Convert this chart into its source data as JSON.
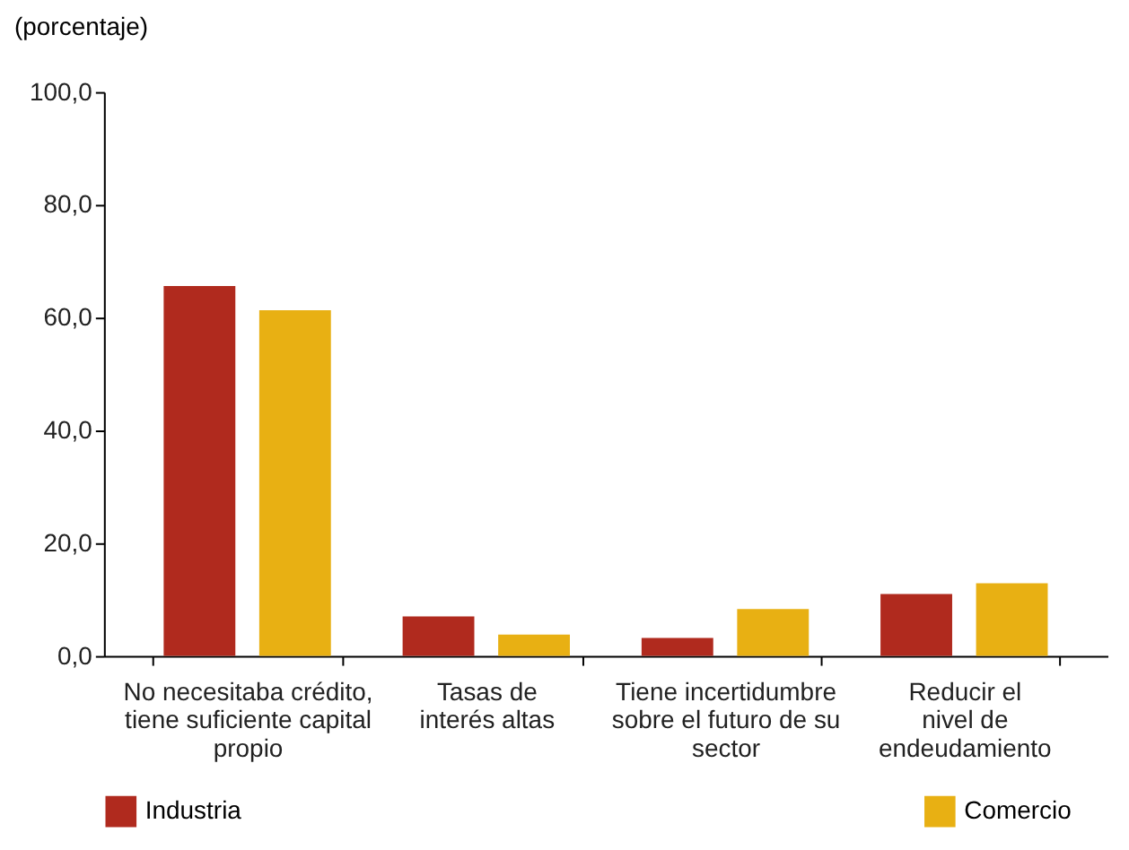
{
  "chart_data": {
    "type": "bar",
    "ylabel": "(porcentaje)",
    "categories": [
      "No necesitaba crédito,\ntiene suficiente capital\npropio",
      "Tasas de\ninterés altas",
      "Tiene incertidumbre\nsobre el futuro de su\nsector",
      "Reducir el\nnivel de\nendeudamiento"
    ],
    "series": [
      {
        "name": "Industria",
        "color": "#b02a1e",
        "values": [
          65.6,
          7.0,
          3.2,
          11.0
        ]
      },
      {
        "name": "Comercio",
        "color": "#e8b013",
        "values": [
          61.3,
          3.8,
          8.3,
          12.9
        ]
      }
    ],
    "ylim": [
      0,
      100
    ],
    "yticks": [
      {
        "value": 0,
        "label": "0,0"
      },
      {
        "value": 20,
        "label": "20,0"
      },
      {
        "value": 40,
        "label": "40,0"
      },
      {
        "value": 60,
        "label": "60,0"
      },
      {
        "value": 80,
        "label": "80,0"
      },
      {
        "value": 100,
        "label": "100,0"
      }
    ],
    "grid": false,
    "legend": "bottom"
  }
}
